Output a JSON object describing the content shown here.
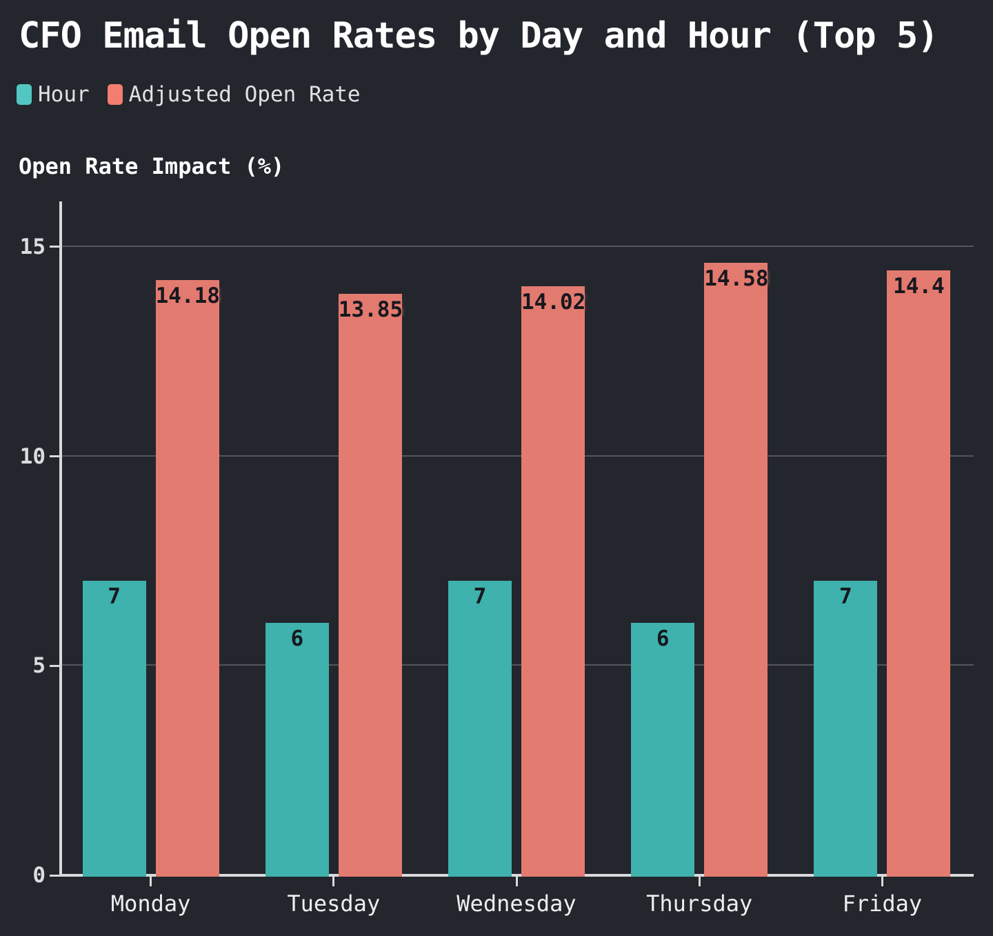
{
  "title": "CFO Email Open Rates by Day and Hour (Top 5)",
  "y_axis_name": "Open Rate Impact (%)",
  "colors": {
    "background": "#23262c",
    "axis_line": "#d9dadd",
    "gridline": "rgba(255,255,255,0.22)",
    "tick_label": "#dadce0",
    "x_label": "#eceef0",
    "bar_value_text": "#16181e"
  },
  "legend": {
    "items": [
      {
        "label": "Hour",
        "swatch_color": "#52c6c0"
      },
      {
        "label": "Adjusted Open Rate",
        "swatch_color": "#f37e70"
      }
    ]
  },
  "chart_data": {
    "type": "bar",
    "title": "CFO Email Open Rates by Day and Hour (Top 5)",
    "xlabel": "",
    "ylabel": "Open Rate Impact (%)",
    "categories": [
      "Monday",
      "Tuesday",
      "Wednesday",
      "Thursday",
      "Friday"
    ],
    "series": [
      {
        "name": "Hour",
        "color": "#3fb2ad",
        "values": [
          7,
          6,
          7,
          6,
          7
        ],
        "labels": [
          "7",
          "6",
          "7",
          "6",
          "7"
        ]
      },
      {
        "name": "Adjusted Open Rate",
        "color": "#e37b70",
        "values": [
          14.18,
          13.85,
          14.02,
          14.58,
          14.4
        ],
        "labels": [
          "14.18",
          "13.85",
          "14.02",
          "14.58",
          "14.4"
        ]
      }
    ],
    "yticks": [
      0,
      5,
      10,
      15
    ],
    "ylim": [
      0,
      16.05
    ],
    "grid": true,
    "legend_position": "top-left",
    "bar_value_labels": "inside-top"
  }
}
